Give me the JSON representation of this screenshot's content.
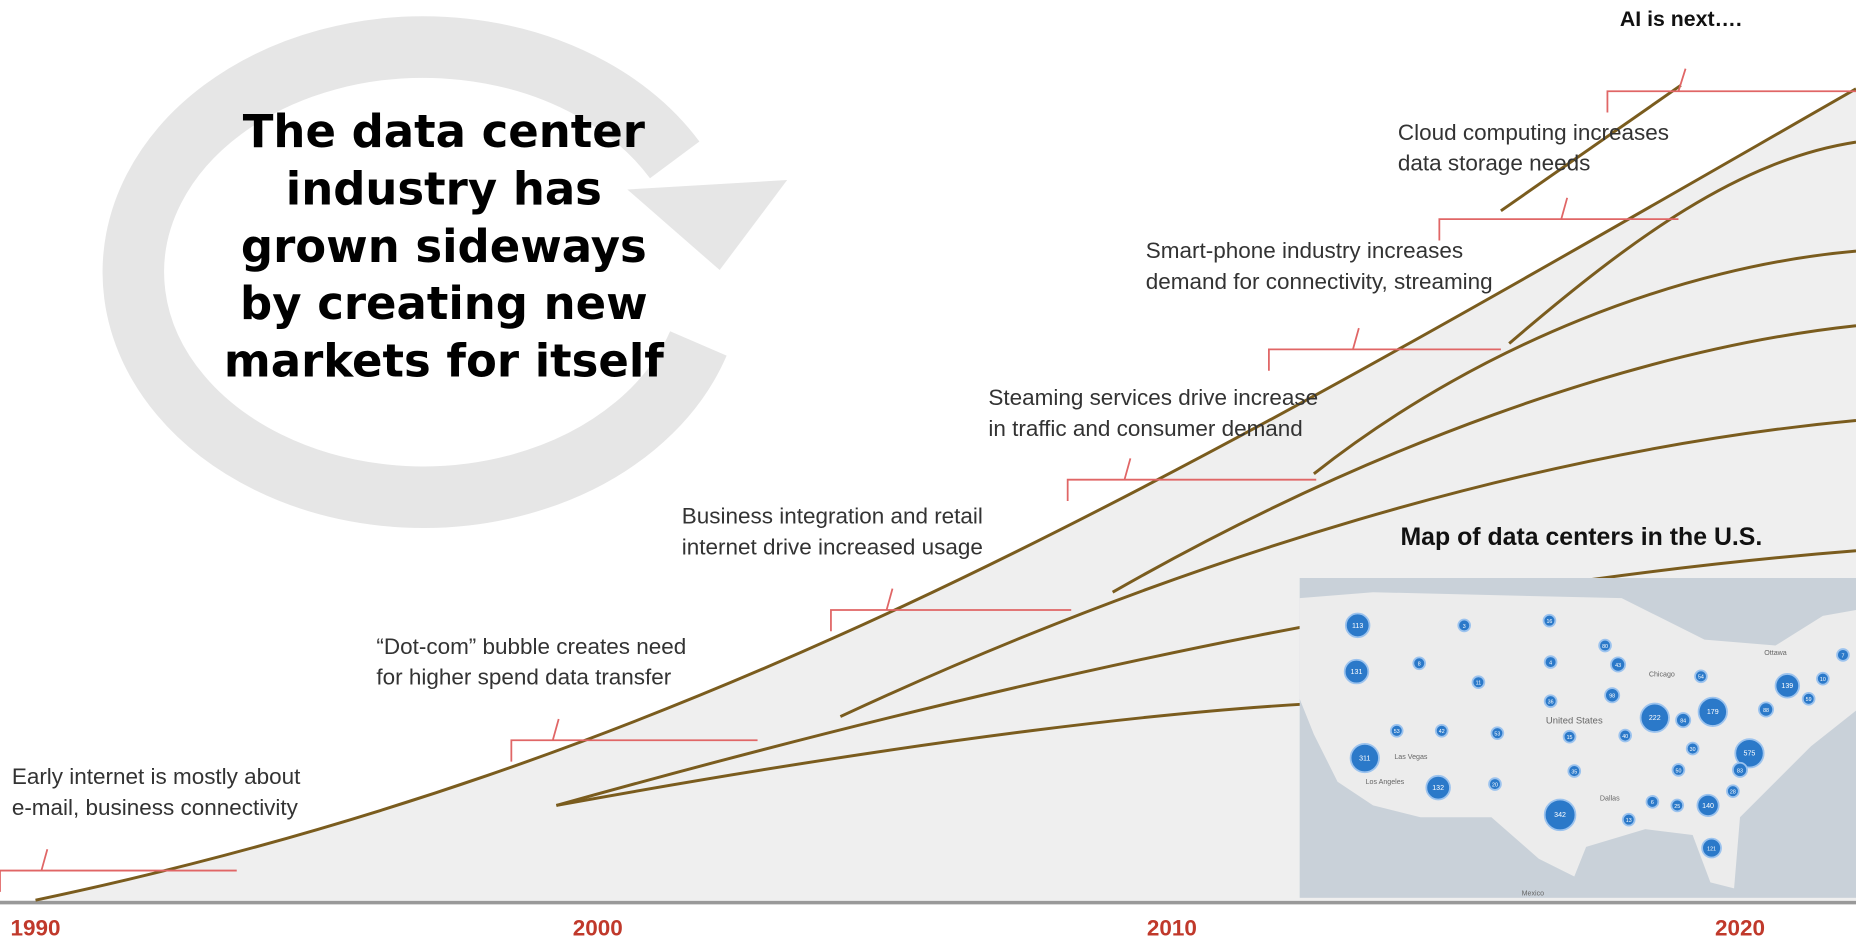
{
  "callout": {
    "lines": [
      "The data center",
      "industry has",
      "grown sideways",
      "by creating new",
      "markets for itself"
    ]
  },
  "milestones": [
    {
      "lines": [
        "Early internet is mostly about",
        "e-mail, business connectivity"
      ]
    },
    {
      "lines": [
        "“Dot-com” bubble creates need",
        "for higher spend data transfer"
      ]
    },
    {
      "lines": [
        "Business integration and retail",
        "internet drive increased usage"
      ]
    },
    {
      "lines": [
        "Steaming services drive increase",
        "in traffic and consumer demand"
      ]
    },
    {
      "lines": [
        "Smart-phone industry increases",
        "demand for connectivity, streaming"
      ]
    },
    {
      "lines": [
        "Cloud computing increases",
        "data storage needs"
      ]
    }
  ],
  "next": "AI is next….",
  "years": [
    "1990",
    "2000",
    "2010",
    "2020"
  ],
  "map": {
    "title": "Map of data centers in the U.S.",
    "clusters": [
      "113",
      "3",
      "16",
      "80",
      "131",
      "8",
      "4",
      "43",
      "11",
      "54",
      "139",
      "98",
      "36",
      "222",
      "84",
      "179",
      "88",
      "53",
      "42",
      "53",
      "15",
      "40",
      "311",
      "30",
      "575",
      "50",
      "83",
      "132",
      "20",
      "35",
      "28",
      "6",
      "25",
      "140",
      "342",
      "13",
      "121",
      "59",
      "7",
      "10"
    ],
    "places": [
      "United States",
      "Mexico",
      "Las Vegas",
      "Los Angeles",
      "Dallas",
      "Chicago",
      "Ottawa"
    ]
  }
}
